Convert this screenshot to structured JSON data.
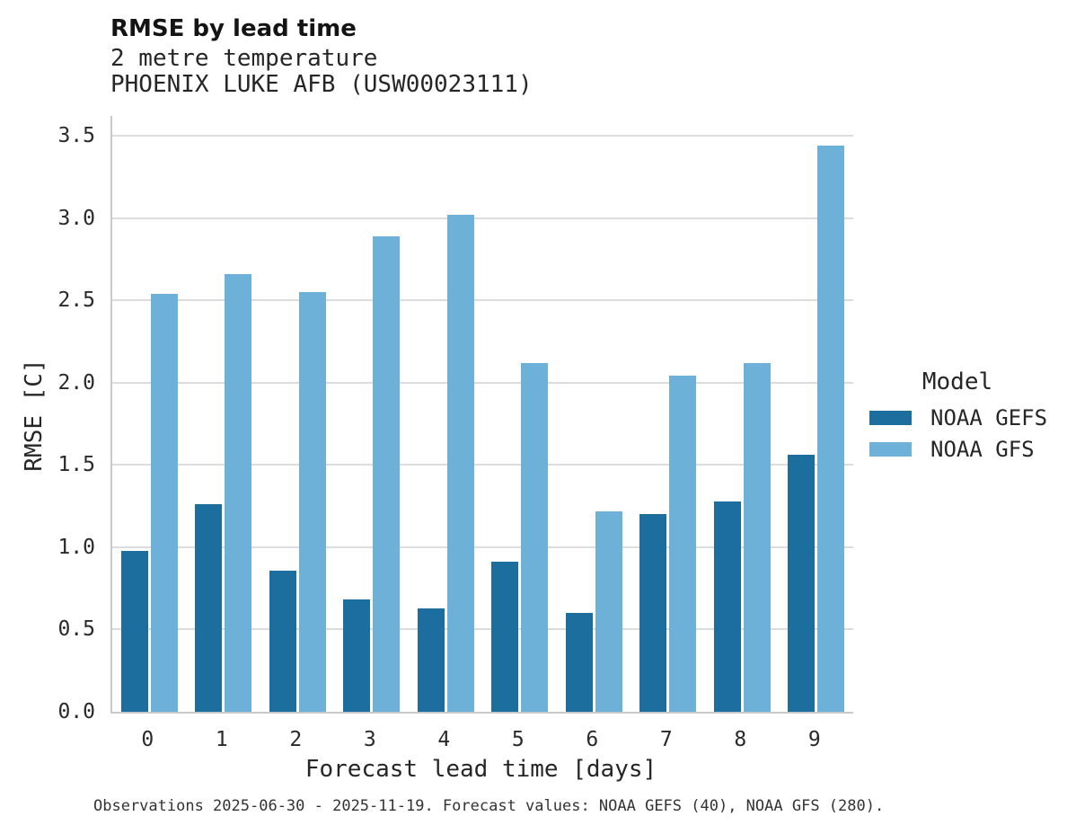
{
  "title": "RMSE by lead time",
  "subtitle_line1": "2 metre temperature",
  "subtitle_line2": "PHOENIX LUKE AFB (USW00023111)",
  "caption": "Observations 2025-06-30 - 2025-11-19. Forecast values: NOAA GEFS (40), NOAA GFS (280).",
  "legend": {
    "title": "Model",
    "entries": [
      {
        "label": "NOAA GEFS",
        "color": "#1b6e9d"
      },
      {
        "label": "NOAA GFS",
        "color": "#6db1d8"
      }
    ]
  },
  "colors": {
    "gridline": "#dcdcdc",
    "spine": "#c9c9c9",
    "background": "#ffffff"
  },
  "chart_data": {
    "type": "bar",
    "title": "RMSE by lead time",
    "subtitle": [
      "2 metre temperature",
      "PHOENIX LUKE AFB (USW00023111)"
    ],
    "categories": [
      "0",
      "1",
      "2",
      "3",
      "4",
      "5",
      "6",
      "7",
      "8",
      "9"
    ],
    "series": [
      {
        "name": "NOAA GEFS",
        "color": "#1b6e9d",
        "values": [
          0.98,
          1.26,
          0.86,
          0.68,
          0.63,
          0.91,
          0.6,
          1.2,
          1.28,
          1.56
        ]
      },
      {
        "name": "NOAA GFS",
        "color": "#6db1d8",
        "values": [
          2.54,
          2.66,
          2.55,
          2.89,
          3.02,
          2.12,
          1.22,
          2.04,
          2.12,
          3.44
        ]
      }
    ],
    "xlabel": "Forecast lead time [days]",
    "ylabel": "RMSE [C]",
    "ylim": [
      0,
      3.62
    ],
    "yticks": [
      0.0,
      0.5,
      1.0,
      1.5,
      2.0,
      2.5,
      3.0,
      3.5
    ],
    "grid": true,
    "legend_title": "Model",
    "legend_position": "right"
  }
}
